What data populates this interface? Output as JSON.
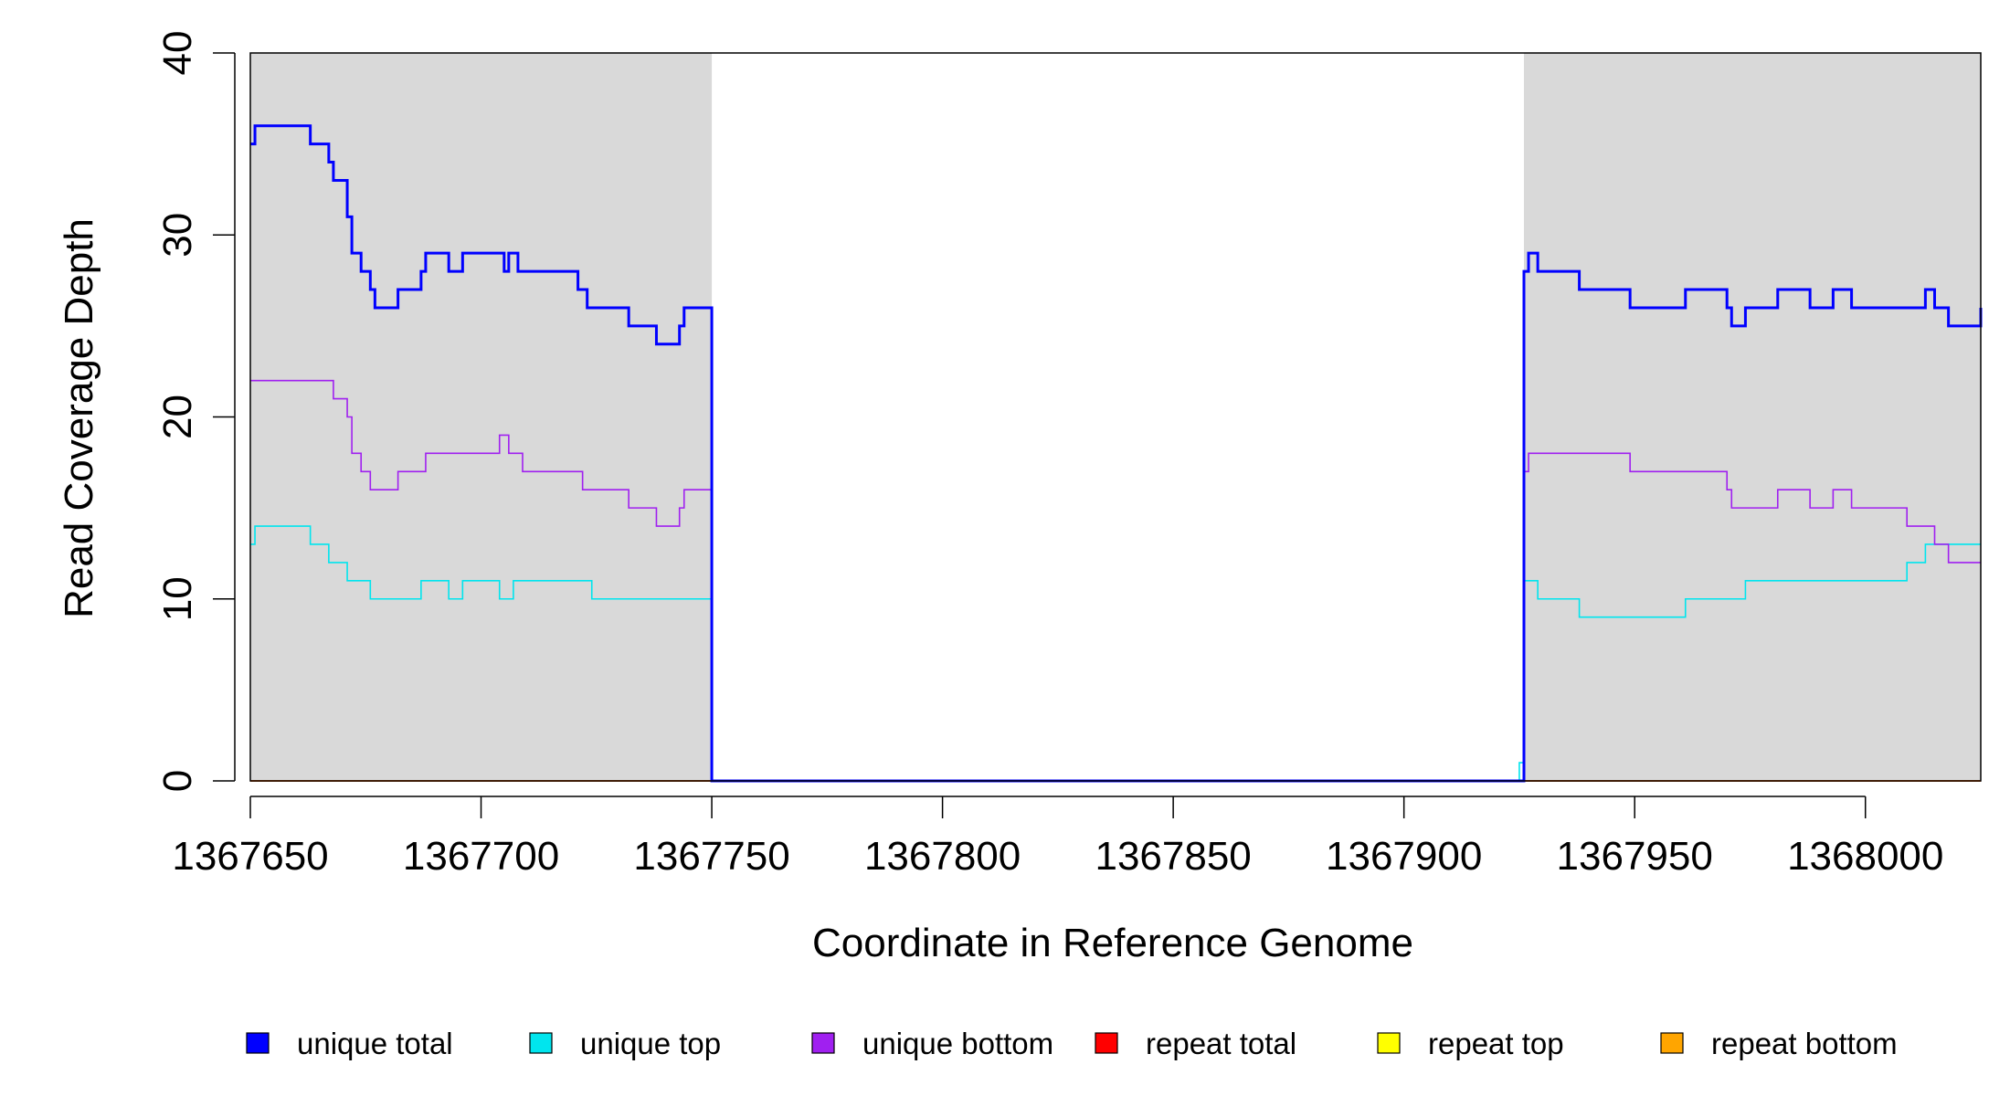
{
  "chart_data": {
    "type": "line",
    "xlabel": "Coordinate in Reference Genome",
    "ylabel": "Read Coverage Depth",
    "xlim": [
      1367650,
      1368025
    ],
    "ylim": [
      0,
      40
    ],
    "x_ticks": [
      1367650,
      1367700,
      1367750,
      1367800,
      1367850,
      1367900,
      1367950,
      1368000
    ],
    "x_tick_labels": [
      "1367650",
      "1367700",
      "1367750",
      "1367800",
      "1367850",
      "1367900",
      "1367950",
      "1368000"
    ],
    "y_ticks": [
      0,
      10,
      20,
      30,
      40
    ],
    "y_tick_labels": [
      "0",
      "10",
      "20",
      "30",
      "40"
    ],
    "grid": false,
    "shaded_regions": [
      [
        1367650,
        1367750
      ],
      [
        1367926,
        1368025
      ]
    ],
    "shade_color": "#D9D9D9",
    "legend_position": "bottom",
    "series": [
      {
        "name": "unique total",
        "color": "#0000FF",
        "line_width": 3,
        "points": [
          [
            1367650,
            35
          ],
          [
            1367651,
            36
          ],
          [
            1367663,
            35
          ],
          [
            1367667,
            34
          ],
          [
            1367668,
            33
          ],
          [
            1367671,
            31
          ],
          [
            1367672,
            29
          ],
          [
            1367674,
            28
          ],
          [
            1367676,
            27
          ],
          [
            1367677,
            26
          ],
          [
            1367682,
            27
          ],
          [
            1367687,
            28
          ],
          [
            1367688,
            29
          ],
          [
            1367693,
            28
          ],
          [
            1367696,
            29
          ],
          [
            1367705,
            28
          ],
          [
            1367706,
            29
          ],
          [
            1367708,
            28
          ],
          [
            1367721,
            27
          ],
          [
            1367723,
            26
          ],
          [
            1367732,
            25
          ],
          [
            1367738,
            24
          ],
          [
            1367743,
            25
          ],
          [
            1367744,
            26
          ],
          [
            1367750,
            0
          ],
          [
            1367926,
            28
          ],
          [
            1367927,
            29
          ],
          [
            1367929,
            28
          ],
          [
            1367938,
            27
          ],
          [
            1367949,
            26
          ],
          [
            1367961,
            27
          ],
          [
            1367970,
            26
          ],
          [
            1367971,
            25
          ],
          [
            1367974,
            26
          ],
          [
            1367981,
            27
          ],
          [
            1367988,
            26
          ],
          [
            1367993,
            27
          ],
          [
            1367997,
            26
          ],
          [
            1368013,
            27
          ],
          [
            1368015,
            26
          ],
          [
            1368018,
            25
          ],
          [
            1368025,
            26
          ]
        ]
      },
      {
        "name": "unique top",
        "color": "#00E5EE",
        "line_width": 1.6,
        "points": [
          [
            1367650,
            13
          ],
          [
            1367651,
            14
          ],
          [
            1367663,
            13
          ],
          [
            1367667,
            12
          ],
          [
            1367671,
            11
          ],
          [
            1367676,
            10
          ],
          [
            1367687,
            11
          ],
          [
            1367693,
            10
          ],
          [
            1367696,
            11
          ],
          [
            1367704,
            10
          ],
          [
            1367707,
            11
          ],
          [
            1367724,
            10
          ],
          [
            1367750,
            0
          ],
          [
            1367925,
            1
          ],
          [
            1367926,
            11
          ],
          [
            1367929,
            10
          ],
          [
            1367938,
            9
          ],
          [
            1367961,
            10
          ],
          [
            1367974,
            11
          ],
          [
            1368009,
            12
          ],
          [
            1368013,
            13
          ],
          [
            1368025,
            13
          ]
        ]
      },
      {
        "name": "unique bottom",
        "color": "#A020F0",
        "line_width": 1.6,
        "points": [
          [
            1367650,
            22
          ],
          [
            1367668,
            21
          ],
          [
            1367671,
            20
          ],
          [
            1367672,
            18
          ],
          [
            1367674,
            17
          ],
          [
            1367676,
            16
          ],
          [
            1367682,
            17
          ],
          [
            1367688,
            18
          ],
          [
            1367704,
            19
          ],
          [
            1367706,
            18
          ],
          [
            1367709,
            17
          ],
          [
            1367722,
            16
          ],
          [
            1367732,
            15
          ],
          [
            1367738,
            14
          ],
          [
            1367743,
            15
          ],
          [
            1367744,
            16
          ],
          [
            1367750,
            0
          ],
          [
            1367926,
            17
          ],
          [
            1367927,
            18
          ],
          [
            1367949,
            17
          ],
          [
            1367970,
            16
          ],
          [
            1367971,
            15
          ],
          [
            1367981,
            16
          ],
          [
            1367988,
            15
          ],
          [
            1367993,
            16
          ],
          [
            1367997,
            15
          ],
          [
            1368009,
            14
          ],
          [
            1368015,
            13
          ],
          [
            1368018,
            12
          ],
          [
            1368025,
            12
          ]
        ]
      },
      {
        "name": "repeat total",
        "color": "#FF0000",
        "line_width": 1.6,
        "points": [
          [
            1367650,
            0
          ],
          [
            1368025,
            0
          ]
        ]
      },
      {
        "name": "repeat top",
        "color": "#FFFF00",
        "line_width": 1.6,
        "points": [
          [
            1367650,
            0
          ],
          [
            1368025,
            0
          ]
        ]
      },
      {
        "name": "repeat bottom",
        "color": "#FFA500",
        "line_width": 1.6,
        "points": [
          [
            1367650,
            0
          ],
          [
            1368025,
            0
          ]
        ]
      }
    ]
  }
}
